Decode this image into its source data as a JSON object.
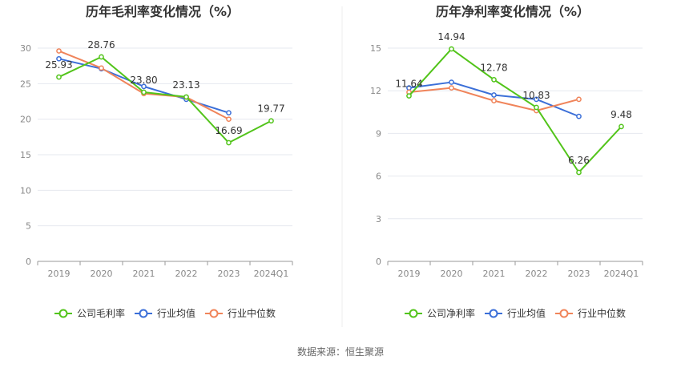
{
  "source_label": "数据来源：恒生聚源",
  "colors": {
    "company": "#52c41a",
    "avg": "#3b6fd8",
    "median": "#f0845a",
    "grid": "#e6e8ef",
    "axis": "#999999"
  },
  "chart_data": [
    {
      "type": "line",
      "title": "历年毛利率变化情况（%）",
      "categories": [
        "2019",
        "2020",
        "2021",
        "2022",
        "2023",
        "2024Q1"
      ],
      "ylim": [
        0,
        30
      ],
      "yticks": [
        "0",
        "5",
        "10",
        "15",
        "20",
        "25",
        "30"
      ],
      "grid": true,
      "legend": "bottom",
      "series": [
        {
          "name": "公司毛利率",
          "key": "company",
          "values": [
            25.93,
            28.76,
            23.8,
            23.13,
            16.69,
            19.77
          ],
          "labels": [
            "25.93",
            "28.76",
            "23.80",
            "23.13",
            "16.69",
            "19.77"
          ]
        },
        {
          "name": "行业均值",
          "key": "avg",
          "values": [
            28.5,
            27.1,
            24.6,
            22.8,
            20.9,
            null
          ]
        },
        {
          "name": "行业中位数",
          "key": "median",
          "values": [
            29.6,
            27.2,
            23.6,
            23.1,
            20.0,
            null
          ]
        }
      ]
    },
    {
      "type": "line",
      "title": "历年净利率变化情况（%）",
      "categories": [
        "2019",
        "2020",
        "2021",
        "2022",
        "2023",
        "2024Q1"
      ],
      "ylim": [
        0,
        15
      ],
      "yticks": [
        "0",
        "3",
        "6",
        "9",
        "12",
        "15"
      ],
      "grid": true,
      "legend": "bottom",
      "series": [
        {
          "name": "公司净利率",
          "key": "company",
          "values": [
            11.64,
            14.94,
            12.78,
            10.83,
            6.26,
            9.48
          ],
          "labels": [
            "11.64",
            "14.94",
            "12.78",
            "10.83",
            "6.26",
            "9.48"
          ]
        },
        {
          "name": "行业均值",
          "key": "avg",
          "values": [
            12.2,
            12.6,
            11.7,
            11.4,
            10.2,
            null
          ]
        },
        {
          "name": "行业中位数",
          "key": "median",
          "values": [
            11.9,
            12.2,
            11.3,
            10.6,
            11.4,
            null
          ]
        }
      ]
    }
  ]
}
